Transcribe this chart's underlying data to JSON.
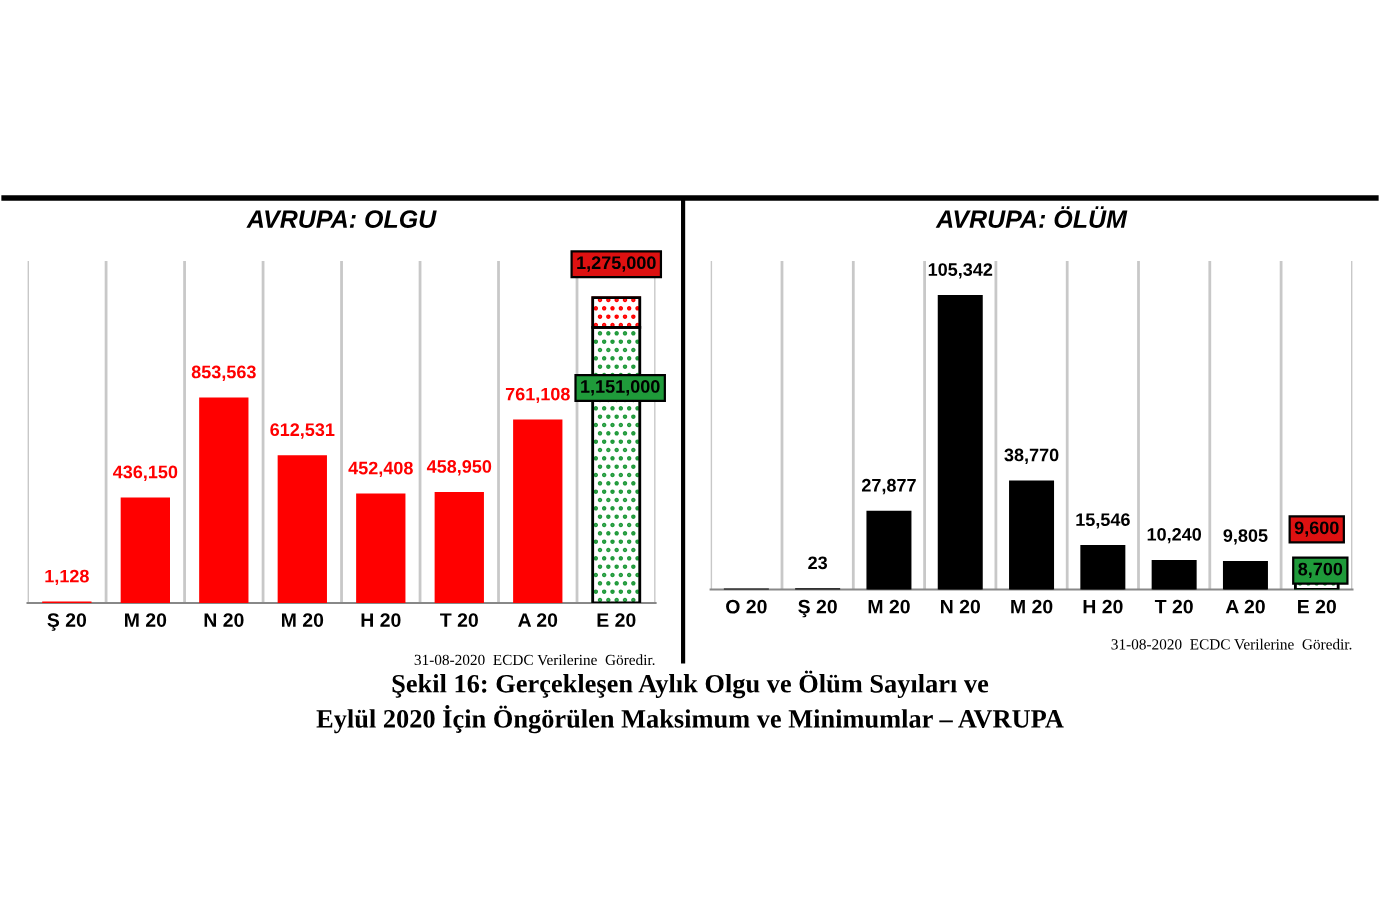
{
  "chart_data": [
    {
      "type": "bar",
      "title": "AVRUPA: OLGU",
      "stacked": true,
      "grid": "x",
      "legend": false,
      "tick_labels": "x",
      "categories": [
        "Ş 20",
        "M 20",
        "N 20",
        "M 20",
        "H 20",
        "T 20",
        "A 20",
        "E 20"
      ],
      "series": [
        {
          "color": "#ff0000",
          "values": [
            1128,
            436150,
            853563,
            612531,
            452408,
            458950,
            761108,
            null
          ],
          "value_labels": [
            "1,128",
            "436,150",
            "853,563",
            "612,531",
            "452,408",
            "458,950",
            "761,108",
            null
          ]
        },
        {
          "color": "#1f9a3a",
          "values": [
            null,
            null,
            null,
            null,
            null,
            null,
            null,
            1151000
          ],
          "value_labels": [
            null,
            null,
            null,
            null,
            null,
            null,
            null,
            "1,151,000"
          ]
        },
        {
          "color": "#ff0000",
          "values": [
            null,
            null,
            null,
            null,
            null,
            null,
            null,
            124000
          ]
        }
      ],
      "totals": [
        null,
        null,
        null,
        null,
        null,
        null,
        null,
        "1,275,000"
      ],
      "annotations": [
        "31-08-2020  ECDC Verilerine  Göredir.",
        "Şekil 16: Gerçekleşen Aylık Olgu ve Ölüm Sayıları ve\nEylül 2020 İçin Öngörülen Maksimum ve Minimumlar – AVRUPA"
      ]
    },
    {
      "type": "bar",
      "title": "AVRUPA: ÖLÜM",
      "stacked": true,
      "grid": "x",
      "legend": false,
      "tick_labels": "x",
      "categories": [
        "O 20",
        "Ş 20",
        "M 20",
        "N 20",
        "M 20",
        "H 20",
        "T 20",
        "A 20",
        "E 20"
      ],
      "series": [
        {
          "color": "#000000",
          "values": [
            1,
            23,
            27877,
            105342,
            38770,
            15546,
            10240,
            9805,
            null
          ],
          "value_labels": [
            null,
            "23",
            "27,877",
            "105,342",
            "38,770",
            "15,546",
            "10,240",
            "9,805",
            null
          ]
        },
        {
          "color": "#1f9a3a",
          "values": [
            null,
            null,
            null,
            null,
            null,
            null,
            null,
            null,
            8700
          ],
          "value_labels": [
            null,
            null,
            null,
            null,
            null,
            null,
            null,
            null,
            "8,700"
          ]
        },
        {
          "color": "#ff0000",
          "values": [
            null,
            null,
            null,
            null,
            null,
            null,
            null,
            null,
            900
          ]
        }
      ],
      "totals": [
        null,
        null,
        null,
        null,
        null,
        null,
        null,
        null,
        "9,600"
      ],
      "annotations": [
        "31-08-2020  ECDC Verilerine  Göredir."
      ]
    }
  ]
}
